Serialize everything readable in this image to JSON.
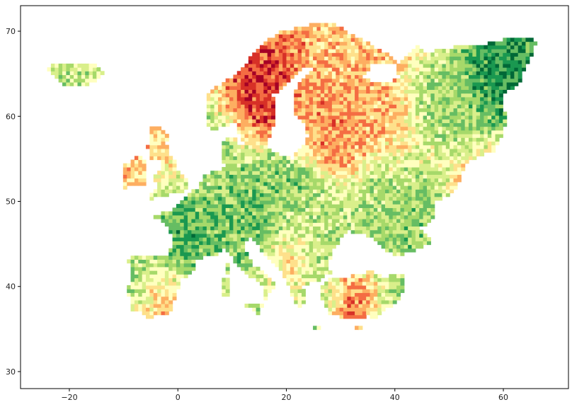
{
  "chart_data": {
    "type": "choropleth",
    "xlim": [
      -29,
      72
    ],
    "ylim": [
      28,
      73
    ],
    "x_ticks": [
      -20,
      0,
      20,
      40,
      60
    ],
    "y_ticks": [
      30,
      40,
      50,
      60,
      70
    ],
    "x_tick_labels": [
      "−20",
      "0",
      "20",
      "40",
      "60"
    ],
    "y_tick_labels": [
      "30",
      "40",
      "50",
      "60",
      "70"
    ],
    "colormap": "RdYlGn",
    "colormap_stops": [
      "#a50026",
      "#d73027",
      "#f46d43",
      "#fdae61",
      "#fee08b",
      "#ffffbf",
      "#d9ef8b",
      "#a6d96a",
      "#66bd63",
      "#1a9850",
      "#006837"
    ],
    "grid": false,
    "title": "",
    "xlabel": "",
    "ylabel": ""
  }
}
